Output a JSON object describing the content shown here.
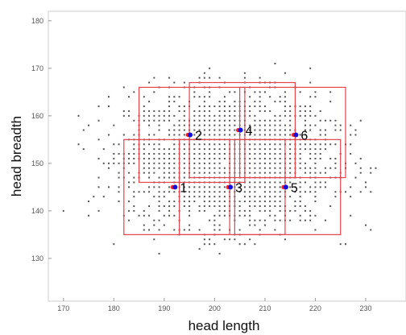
{
  "chart_data": {
    "type": "scatter",
    "title": "",
    "xlabel": "head length",
    "ylabel": "head breadth",
    "xlim": [
      167,
      238
    ],
    "ylim": [
      121,
      182
    ],
    "xticks": [
      170,
      180,
      190,
      200,
      210,
      220,
      230
    ],
    "yticks": [
      130,
      140,
      150,
      160,
      170,
      180
    ],
    "grid": false,
    "colors": {
      "points": "#555555",
      "centroids": "#1010e0",
      "centroid_marker": "#ff2020",
      "boxes": "#e8434b"
    },
    "centroids": [
      {
        "label": "1",
        "x": 192,
        "y": 145
      },
      {
        "label": "2",
        "x": 195,
        "y": 156
      },
      {
        "label": "3",
        "x": 203,
        "y": 145
      },
      {
        "label": "4",
        "x": 205,
        "y": 157
      },
      {
        "label": "5",
        "x": 214,
        "y": 145
      },
      {
        "label": "6",
        "x": 216,
        "y": 156
      }
    ],
    "boxes": [
      {
        "x0": 182,
        "x1": 203,
        "y0": 135,
        "y1": 155
      },
      {
        "x0": 185,
        "x1": 206,
        "y0": 146,
        "y1": 166
      },
      {
        "x0": 193,
        "x1": 214,
        "y0": 135,
        "y1": 155
      },
      {
        "x0": 195,
        "x1": 216,
        "y0": 147,
        "y1": 167
      },
      {
        "x0": 204,
        "x1": 225,
        "y0": 135,
        "y1": 155
      },
      {
        "x0": 205,
        "x1": 226,
        "y0": 147,
        "y1": 166
      }
    ],
    "points_note": "approx. 1200 sample points, head length 170-232 by head breadth 131-172"
  }
}
